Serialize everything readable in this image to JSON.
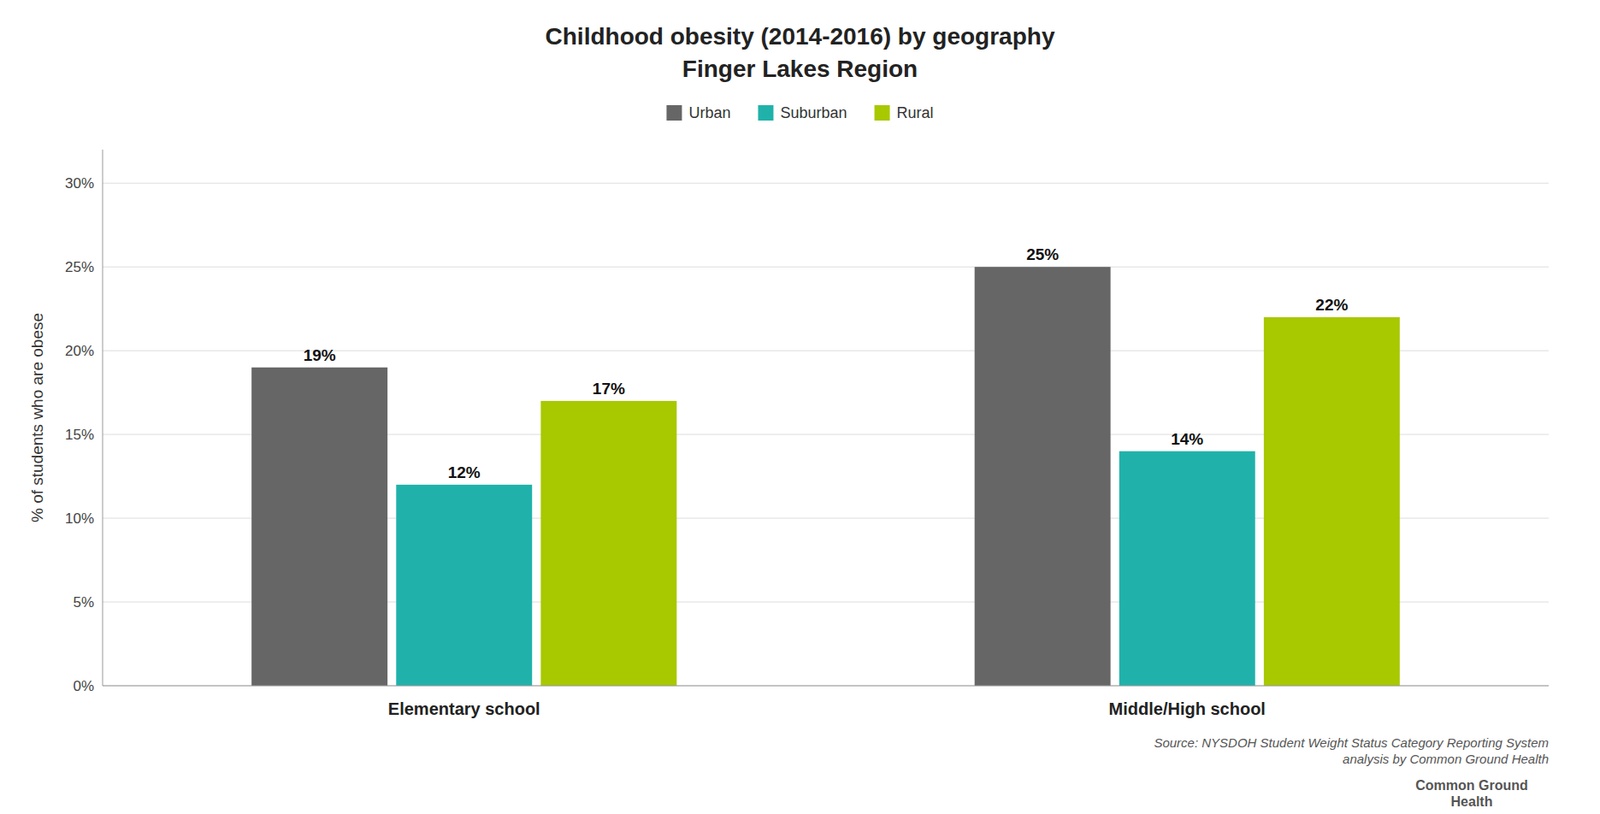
{
  "chart_data": {
    "type": "bar",
    "title": "Childhood obesity (2014-2016) by geography",
    "subtitle": "Finger Lakes Region",
    "categories": [
      "Elementary school",
      "Middle/High school"
    ],
    "series": [
      {
        "name": "Urban",
        "color": "#666666",
        "values": [
          19,
          25
        ],
        "value_labels": [
          "19%",
          "25%"
        ]
      },
      {
        "name": "Suburban",
        "color": "#20B2AA",
        "values": [
          12,
          14
        ],
        "value_labels": [
          "12%",
          "14%"
        ]
      },
      {
        "name": "Rural",
        "color": "#A8C800",
        "values": [
          17,
          22
        ],
        "value_labels": [
          "17%",
          "22%"
        ]
      }
    ],
    "y_label": "% of students who are obese",
    "ylim": [
      0,
      32
    ],
    "yticks": [
      {
        "value": 0,
        "label": "0%"
      },
      {
        "value": 5,
        "label": "5%"
      },
      {
        "value": 10,
        "label": "10%"
      },
      {
        "value": 15,
        "label": "15%"
      },
      {
        "value": 20,
        "label": "20%"
      },
      {
        "value": 25,
        "label": "25%"
      },
      {
        "value": 30,
        "label": "30%"
      }
    ],
    "grid": true,
    "legend": "top",
    "data_labels": true,
    "annotations": [
      "Source: NYSDOH Student Weight Status Category Reporting System\nanalysis by Common Ground Health",
      "Common Ground\nHealth"
    ]
  }
}
